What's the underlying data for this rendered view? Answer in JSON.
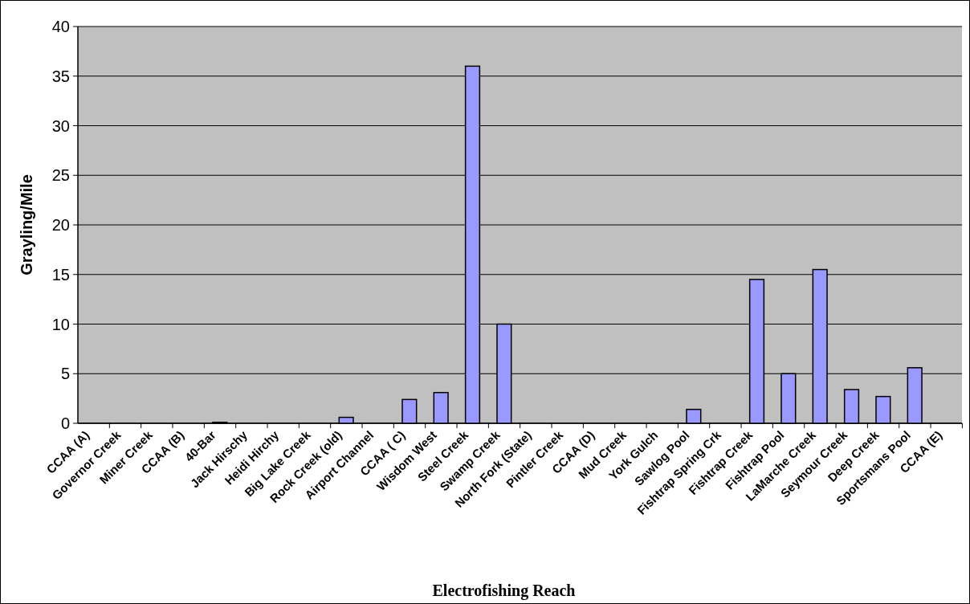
{
  "chart_data": {
    "type": "bar",
    "xlabel": "Electrofishing Reach",
    "ylabel": "Grayling/Mile",
    "categories": [
      "CCAA (A)",
      "Governor Creek",
      "Miner Creek",
      "CCAA (B)",
      "40-Bar",
      "Jack Hirschy",
      "Heidi Hirchy",
      "Big Lake Creek",
      "Rock Creek (old)",
      "Airport Channel",
      "CCAA ( C)",
      "Wisdom West",
      "Steel Creek",
      "Swamp Creek",
      "North Fork (State)",
      "Pintler Creek",
      "CCAA (D)",
      "Mud Creek",
      "York Gulch",
      "Sawlog Pool",
      "Fishtrap Spring Crk",
      "Fishtrap Creek",
      "Fishtrap Pool",
      "LaMarche Creek",
      "Seymour Creek",
      "Deep Creek",
      "Sportsmans Pool",
      "CCAA (E)"
    ],
    "values": [
      0,
      0,
      0,
      0,
      0.1,
      0,
      0,
      0,
      0.6,
      0,
      2.4,
      3.1,
      36,
      10,
      0,
      0,
      0,
      0,
      0,
      1.4,
      0,
      14.5,
      5,
      15.5,
      3.4,
      2.7,
      5.6,
      0
    ],
    "color": "#9999ff",
    "ylim": [
      0,
      40
    ],
    "yticks": [
      0,
      5,
      10,
      15,
      20,
      25,
      30,
      35,
      40
    ],
    "grid": "y"
  }
}
